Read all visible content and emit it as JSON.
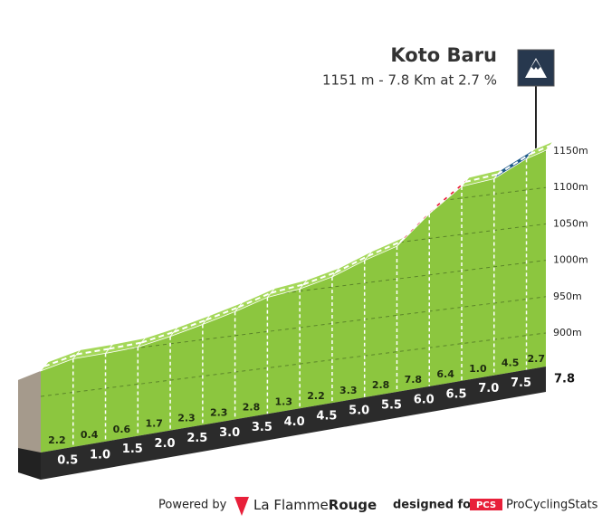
{
  "chart_data": {
    "type": "climb-profile",
    "title": "Koto Baru",
    "subtitle": "1151 m - 7.8 Km at 2.7 %",
    "x": [
      0,
      0.5,
      1,
      1.5,
      2,
      2.5,
      3,
      3.5,
      4,
      4.5,
      5,
      5.5,
      6,
      6.5,
      7,
      7.5,
      7.8
    ],
    "values": [
      935,
      946,
      948,
      951,
      960,
      971,
      983,
      997,
      1003,
      1014,
      1031,
      1045,
      1084,
      1116,
      1121,
      1143,
      1151
    ],
    "xticks": [
      0.5,
      {
        "value": 1,
        "label": "1.0"
      },
      1.5,
      {
        "value": 2,
        "label": "2.0"
      },
      2.5,
      {
        "value": 3,
        "label": "3.0"
      },
      3.5,
      {
        "value": 4,
        "label": "4.0"
      },
      4.5,
      {
        "value": 5,
        "label": "5.0"
      },
      5.5,
      {
        "value": 6,
        "label": "6.0"
      },
      6.5,
      {
        "value": 7,
        "label": "7.0"
      },
      7.5,
      7.8
    ],
    "gradients": [
      2.2,
      0.4,
      0.6,
      1.7,
      2.3,
      2.3,
      2.8,
      1.3,
      2.2,
      3.3,
      2.8,
      7.8,
      6.4,
      1.0,
      4.5,
      2.7
    ],
    "gradient_labels": [
      "2.2",
      "0.4",
      "0.6",
      "1.7",
      "2.3",
      "2.3",
      "2.8",
      "1.3",
      "2.2",
      "3.3",
      "2.8",
      "7.8",
      "6.4",
      "1.0",
      "4.5",
      "2.7"
    ],
    "segment_colors": [
      "#a5d85a",
      "#a5d85a",
      "#a5d85a",
      "#a5d85a",
      "#a5d85a",
      "#a5d85a",
      "#a5d85a",
      "#a5d85a",
      "#a5d85a",
      "#a5d85a",
      "#a5d85a",
      "#e8203a",
      "#e8203a",
      "#a5d85a",
      "#1f5b8a",
      "#a5d85a"
    ],
    "color": "#8cc63f",
    "ylim": [
      900,
      1150
    ],
    "yticks": [
      {
        "value": 900,
        "label": "900m"
      },
      {
        "value": 950,
        "label": "950m"
      },
      {
        "value": 1000,
        "label": "1000m"
      },
      {
        "value": 1050,
        "label": "1050m"
      },
      {
        "value": 1100,
        "label": "1100m"
      },
      {
        "value": 1150,
        "label": "1150m"
      }
    ],
    "grid": true
  },
  "footer": {
    "powered_by": "Powered by",
    "brand_a": "La Flamme",
    "brand_b": "Rouge",
    "designed_for": "designed for",
    "pcs": "PCS",
    "pcs_name": "ProCyclingStats"
  }
}
